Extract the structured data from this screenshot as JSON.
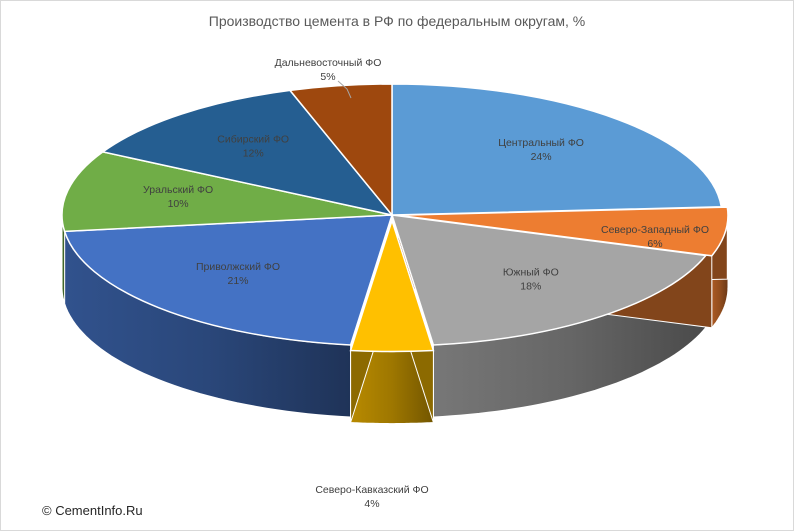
{
  "chart_data": {
    "type": "pie",
    "title": "Производство цемента в РФ по федеральным округам, %",
    "slices": [
      {
        "label": "Центральный ФО",
        "value": 24,
        "value_label": "24%",
        "color": "#5b9bd5"
      },
      {
        "label": "Северо-Западный ФО",
        "value": 6,
        "value_label": "6%",
        "color": "#ed7d31"
      },
      {
        "label": "Южный ФО",
        "value": 18,
        "value_label": "18%",
        "color": "#a5a5a5"
      },
      {
        "label": "Северо-Кавказский ФО",
        "value": 4,
        "value_label": "4%",
        "color": "#ffc000"
      },
      {
        "label": "Приволжский ФО",
        "value": 21,
        "value_label": "21%",
        "color": "#4472c4"
      },
      {
        "label": "Уральский ФО",
        "value": 10,
        "value_label": "10%",
        "color": "#70ad47"
      },
      {
        "label": "Сибирский ФО",
        "value": 12,
        "value_label": "12%",
        "color": "#255e91"
      },
      {
        "label": "Дальневосточный ФО",
        "value": 5,
        "value_label": "5%",
        "color": "#9e480e"
      }
    ],
    "style": "3d-exploded"
  },
  "copyright": "© CementInfo.Ru"
}
